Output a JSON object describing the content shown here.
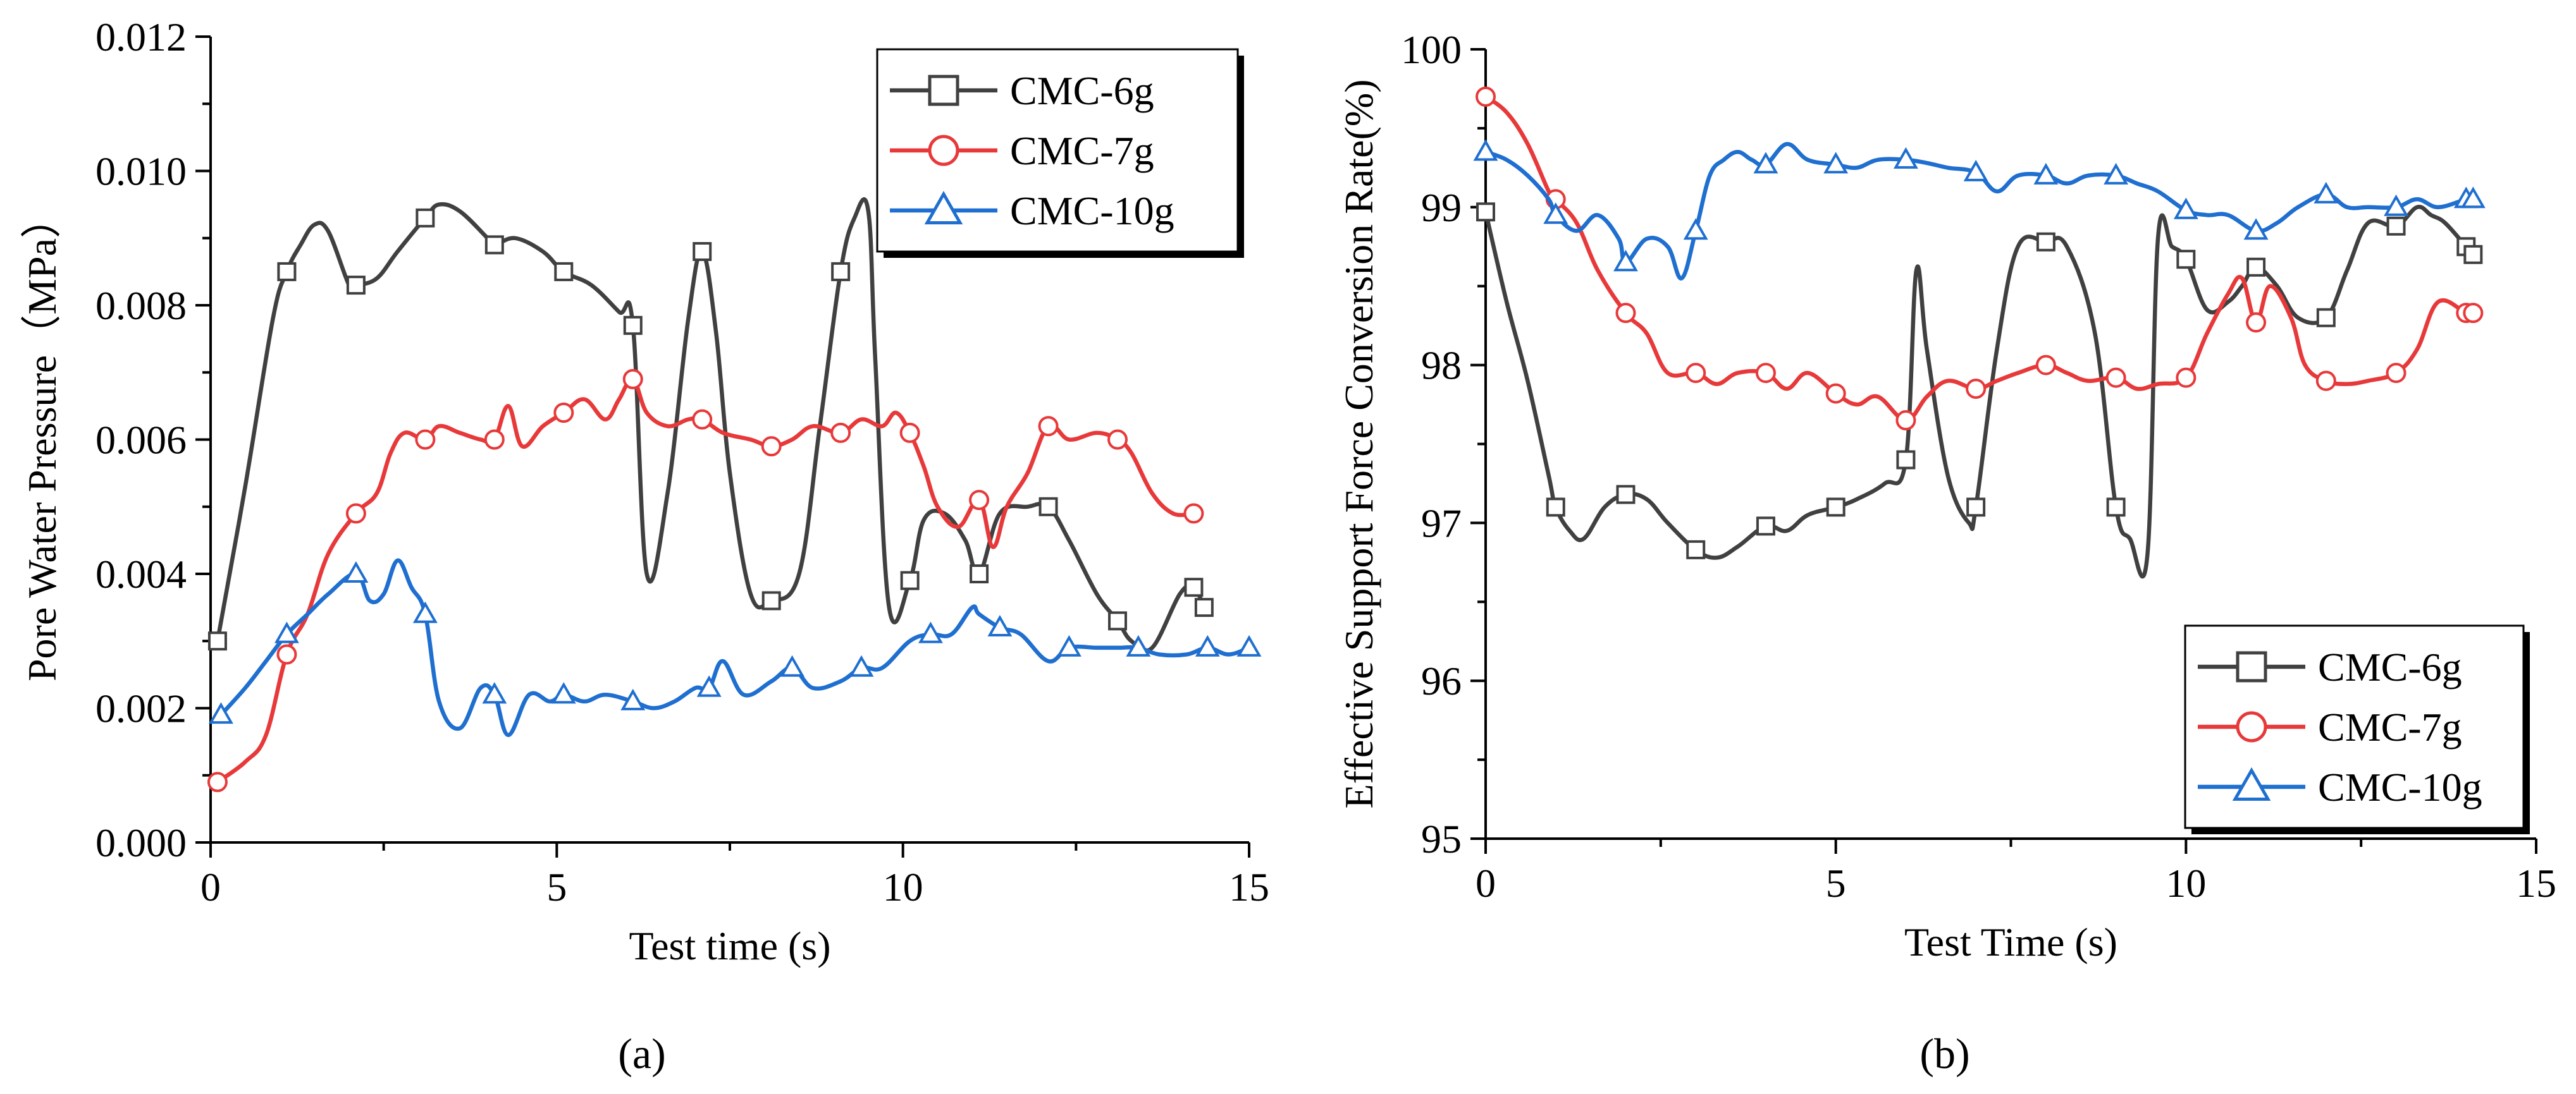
{
  "figure": {
    "panel_labels": [
      "(a)",
      "(b)"
    ]
  },
  "chart_data": [
    {
      "type": "line",
      "panel": "(a)",
      "title": "",
      "xlabel": "Test time (s)",
      "ylabel": "Pore Water Pressure（MPa）",
      "xlim": [
        0,
        15
      ],
      "ylim": [
        0,
        0.012
      ],
      "xticks": [
        0,
        5,
        10,
        15
      ],
      "xtick_labels": [
        "0",
        "5",
        "10",
        "15"
      ],
      "yticks": [
        0,
        0.002,
        0.004,
        0.006,
        0.008,
        0.01,
        0.012
      ],
      "ytick_labels": [
        "0.000",
        "0.002",
        "0.004",
        "0.006",
        "0.008",
        "0.010",
        "0.012"
      ],
      "legend_position": "top-right",
      "series": [
        {
          "name": "CMC-6g",
          "color": "#404040",
          "marker": "square",
          "x": [
            0.1,
            0.5,
            0.9,
            1.1,
            1.3,
            1.5,
            1.7,
            2.0,
            2.1,
            2.4,
            2.7,
            3.1,
            3.3,
            3.6,
            4.0,
            4.1,
            4.4,
            4.8,
            5.1,
            5.5,
            5.9,
            6.1,
            6.3,
            6.6,
            6.9,
            7.1,
            7.3,
            7.5,
            7.8,
            8.1,
            8.5,
            8.8,
            9.1,
            9.3,
            9.5,
            9.6,
            9.8,
            10.1,
            10.3,
            10.6,
            10.9,
            11.1,
            11.4,
            11.8,
            12.1,
            12.4,
            12.8,
            13.1,
            13.3,
            13.6,
            14.0,
            14.2,
            14.35
          ],
          "y": [
            0.003,
            0.0053,
            0.0078,
            0.0085,
            0.0089,
            0.0092,
            0.0091,
            0.0083,
            0.0083,
            0.0084,
            0.0088,
            0.0093,
            0.0095,
            0.0094,
            0.009,
            0.0089,
            0.009,
            0.0088,
            0.0085,
            0.0083,
            0.0079,
            0.0077,
            0.004,
            0.0052,
            0.0078,
            0.0088,
            0.0076,
            0.0055,
            0.0037,
            0.0036,
            0.004,
            0.0062,
            0.0085,
            0.0093,
            0.0094,
            0.0072,
            0.0035,
            0.0039,
            0.0048,
            0.0049,
            0.0045,
            0.004,
            0.0049,
            0.005,
            0.005,
            0.0045,
            0.0037,
            0.0033,
            0.003,
            0.0029,
            0.0037,
            0.0038,
            0.0035
          ]
        },
        {
          "name": "CMC-7g",
          "color": "#e8393a",
          "marker": "circle",
          "x": [
            0.1,
            0.5,
            0.8,
            1.1,
            1.4,
            1.7,
            2.1,
            2.4,
            2.6,
            2.8,
            3.1,
            3.3,
            3.6,
            3.9,
            4.1,
            4.3,
            4.5,
            4.8,
            5.1,
            5.4,
            5.7,
            5.9,
            6.1,
            6.3,
            6.6,
            6.9,
            7.1,
            7.4,
            7.8,
            8.1,
            8.4,
            8.7,
            9.1,
            9.4,
            9.7,
            9.9,
            10.1,
            10.3,
            10.5,
            10.8,
            11.1,
            11.3,
            11.5,
            11.8,
            12.1,
            12.4,
            12.8,
            13.1,
            13.3,
            13.6,
            13.9,
            14.2
          ],
          "y": [
            0.0009,
            0.0012,
            0.0016,
            0.0028,
            0.0034,
            0.0043,
            0.0049,
            0.0052,
            0.0058,
            0.0061,
            0.006,
            0.0062,
            0.0061,
            0.006,
            0.006,
            0.0065,
            0.0059,
            0.0062,
            0.0064,
            0.0066,
            0.0063,
            0.0066,
            0.0069,
            0.0064,
            0.0062,
            0.0063,
            0.0063,
            0.0061,
            0.006,
            0.0059,
            0.006,
            0.0062,
            0.0061,
            0.0063,
            0.0062,
            0.0064,
            0.0061,
            0.0056,
            0.005,
            0.0047,
            0.0051,
            0.0044,
            0.005,
            0.0055,
            0.0062,
            0.006,
            0.0061,
            0.006,
            0.0058,
            0.0052,
            0.0049,
            0.0049
          ]
        },
        {
          "name": "CMC-10g",
          "color": "#1f6fd0",
          "marker": "triangle",
          "x": [
            0.15,
            0.5,
            0.8,
            1.1,
            1.4,
            1.7,
            2.1,
            2.3,
            2.5,
            2.7,
            2.9,
            3.1,
            3.3,
            3.6,
            3.9,
            4.1,
            4.3,
            4.6,
            4.9,
            5.1,
            5.4,
            5.7,
            6.1,
            6.4,
            6.7,
            7.0,
            7.2,
            7.4,
            7.7,
            8.1,
            8.4,
            8.7,
            9.1,
            9.4,
            9.7,
            10.1,
            10.4,
            10.7,
            11.0,
            11.1,
            11.4,
            11.7,
            12.1,
            12.4,
            12.8,
            13.1,
            13.4,
            13.7,
            14.1,
            14.4,
            14.7,
            15.0
          ],
          "y": [
            0.0019,
            0.0023,
            0.0027,
            0.0031,
            0.0034,
            0.0037,
            0.004,
            0.0036,
            0.0037,
            0.0042,
            0.0038,
            0.0034,
            0.0021,
            0.0017,
            0.0023,
            0.0022,
            0.0016,
            0.0022,
            0.0021,
            0.0022,
            0.0021,
            0.0022,
            0.0021,
            0.002,
            0.0021,
            0.0023,
            0.0023,
            0.0027,
            0.0022,
            0.0024,
            0.0026,
            0.0023,
            0.0024,
            0.0026,
            0.0026,
            0.003,
            0.0031,
            0.0031,
            0.0035,
            0.0034,
            0.0032,
            0.0031,
            0.0027,
            0.0029,
            0.0029,
            0.0029,
            0.0029,
            0.0028,
            0.0028,
            0.0029,
            0.0028,
            0.0029
          ]
        }
      ]
    },
    {
      "type": "line",
      "panel": "(b)",
      "title": "",
      "xlabel": "Test Time (s)",
      "ylabel": "Effective Support Force Conversion Rate(%)",
      "xlim": [
        0,
        15
      ],
      "ylim": [
        95,
        100
      ],
      "xticks": [
        0,
        5,
        10,
        15
      ],
      "xtick_labels": [
        "0",
        "5",
        "10",
        "15"
      ],
      "yticks": [
        95,
        96,
        97,
        98,
        99,
        100
      ],
      "ytick_labels": [
        "95",
        "96",
        "97",
        "98",
        "99",
        "100"
      ],
      "legend_position": "bottom-right",
      "series": [
        {
          "name": "CMC-6g",
          "color": "#404040",
          "marker": "square",
          "x": [
            0.0,
            0.3,
            0.6,
            0.9,
            1.0,
            1.2,
            1.4,
            1.7,
            2.0,
            2.3,
            2.6,
            3.0,
            3.3,
            3.6,
            4.0,
            4.3,
            4.6,
            5.0,
            5.3,
            5.7,
            6.0,
            6.15,
            6.3,
            6.6,
            6.9,
            7.0,
            7.3,
            7.6,
            8.0,
            8.3,
            8.7,
            9.0,
            9.2,
            9.45,
            9.6,
            9.8,
            10.0,
            10.3,
            10.6,
            10.8,
            11.0,
            11.3,
            11.6,
            12.0,
            12.3,
            12.6,
            13.0,
            13.3,
            13.5,
            13.7,
            14.0,
            14.1
          ],
          "y": [
            98.97,
            98.4,
            97.9,
            97.3,
            97.1,
            96.95,
            96.9,
            97.1,
            97.18,
            97.15,
            97.0,
            96.83,
            96.78,
            96.85,
            96.98,
            96.95,
            97.05,
            97.1,
            97.15,
            97.25,
            97.4,
            98.6,
            98.1,
            97.3,
            97.0,
            97.1,
            98.1,
            98.75,
            98.78,
            98.75,
            98.2,
            97.1,
            96.9,
            96.8,
            98.8,
            98.75,
            98.67,
            98.35,
            98.4,
            98.5,
            98.62,
            98.5,
            98.3,
            98.3,
            98.6,
            98.9,
            98.88,
            99.0,
            98.95,
            98.9,
            98.75,
            98.7
          ]
        },
        {
          "name": "CMC-7g",
          "color": "#e8393a",
          "marker": "circle",
          "x": [
            0.0,
            0.3,
            0.6,
            0.9,
            1.0,
            1.3,
            1.6,
            2.0,
            2.3,
            2.6,
            3.0,
            3.3,
            3.6,
            4.0,
            4.3,
            4.6,
            5.0,
            5.3,
            5.6,
            6.0,
            6.3,
            6.6,
            7.0,
            7.3,
            7.6,
            8.0,
            8.3,
            8.6,
            9.0,
            9.3,
            9.6,
            10.0,
            10.3,
            10.6,
            10.8,
            11.0,
            11.2,
            11.5,
            11.7,
            12.0,
            12.3,
            12.6,
            13.0,
            13.3,
            13.6,
            14.0,
            14.1
          ],
          "y": [
            99.7,
            99.6,
            99.4,
            99.1,
            99.05,
            98.9,
            98.6,
            98.33,
            98.2,
            97.95,
            97.95,
            97.88,
            97.95,
            97.95,
            97.85,
            97.95,
            97.82,
            97.75,
            97.8,
            97.65,
            97.8,
            97.9,
            97.85,
            97.9,
            97.95,
            98.0,
            97.95,
            97.9,
            97.92,
            97.85,
            97.88,
            97.92,
            98.2,
            98.45,
            98.55,
            98.27,
            98.5,
            98.3,
            98.0,
            97.9,
            97.88,
            97.9,
            97.95,
            98.1,
            98.4,
            98.33,
            98.33
          ]
        },
        {
          "name": "CMC-10g",
          "color": "#1f6fd0",
          "marker": "triangle",
          "x": [
            0.0,
            0.3,
            0.6,
            0.9,
            1.0,
            1.3,
            1.6,
            1.9,
            2.0,
            2.3,
            2.6,
            2.8,
            3.0,
            3.2,
            3.4,
            3.6,
            3.8,
            4.0,
            4.3,
            4.6,
            5.0,
            5.3,
            5.6,
            6.0,
            6.3,
            6.6,
            7.0,
            7.3,
            7.6,
            8.0,
            8.3,
            8.6,
            9.0,
            9.3,
            9.6,
            10.0,
            10.3,
            10.6,
            11.0,
            11.3,
            11.6,
            12.0,
            12.3,
            12.6,
            13.0,
            13.3,
            13.6,
            14.0,
            14.1
          ],
          "y": [
            99.35,
            99.3,
            99.2,
            99.05,
            98.95,
            98.85,
            98.95,
            98.8,
            98.65,
            98.8,
            98.75,
            98.55,
            98.85,
            99.2,
            99.3,
            99.35,
            99.3,
            99.27,
            99.4,
            99.3,
            99.27,
            99.25,
            99.3,
            99.3,
            99.28,
            99.25,
            99.22,
            99.1,
            99.2,
            99.2,
            99.15,
            99.2,
            99.2,
            99.15,
            99.1,
            98.98,
            98.95,
            98.95,
            98.85,
            98.9,
            99.0,
            99.08,
            99.0,
            99.0,
            99.0,
            99.05,
            99.0,
            99.05,
            99.05
          ]
        }
      ]
    }
  ]
}
